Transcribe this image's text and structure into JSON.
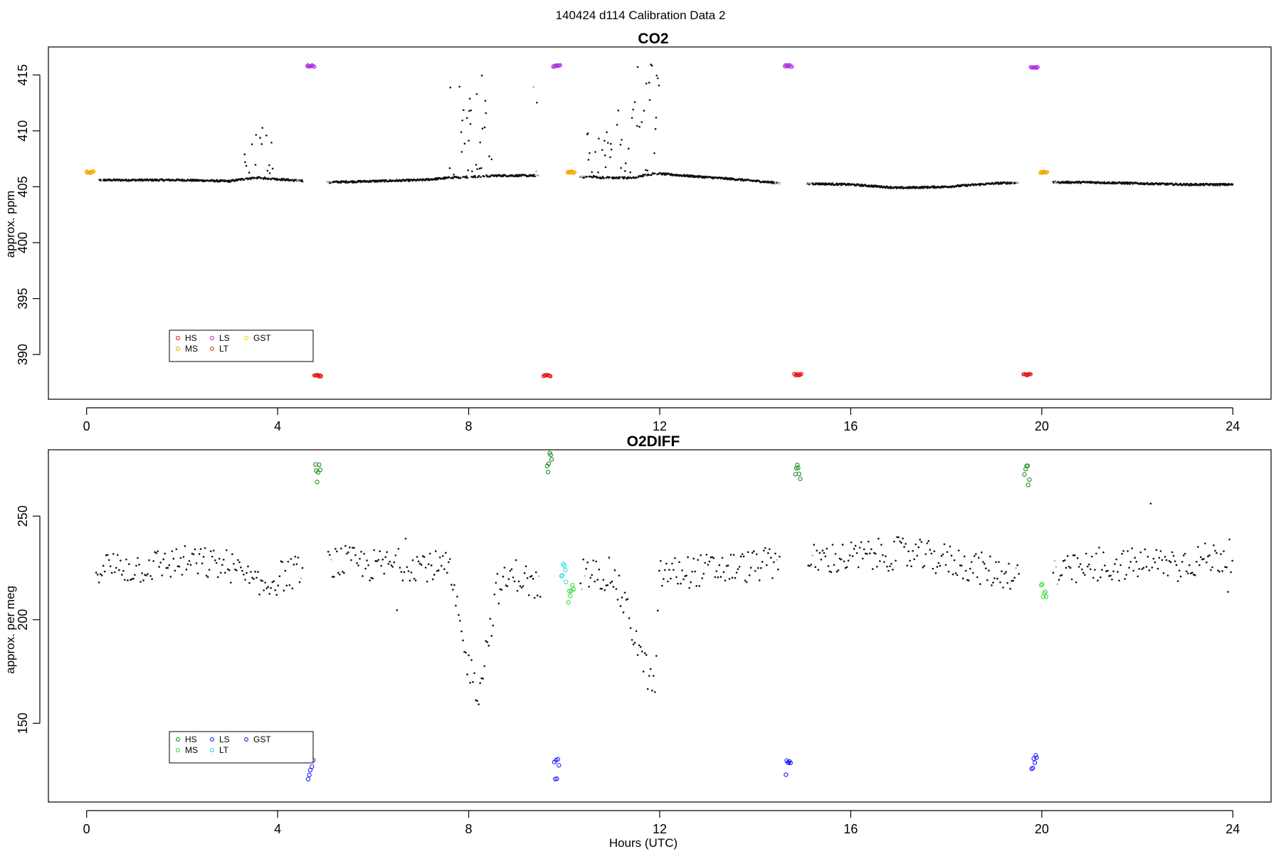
{
  "figure": {
    "title": "140424   d114   Calibration Data 2",
    "xlabel": "Hours (UTC)"
  },
  "chart_data": [
    {
      "type": "scatter",
      "title": "CO2",
      "xlabel": "",
      "ylabel": "approx. ppm",
      "xlim": [
        -0.8,
        24.8
      ],
      "ylim": [
        386,
        417.5
      ],
      "xticks": [
        0,
        4,
        8,
        12,
        16,
        20,
        24
      ],
      "yticks": [
        390,
        395,
        400,
        405,
        410,
        415
      ],
      "legend": {
        "position": "bottom-left",
        "entries": [
          {
            "label": "HS",
            "color": "#e41a1c"
          },
          {
            "label": "MS",
            "color": "#f5a800"
          },
          {
            "label": "LS",
            "color": "#b030e0"
          },
          {
            "label": "LT",
            "color": "#c0392b"
          },
          {
            "label": "GST",
            "color": "#f5d400"
          }
        ]
      },
      "baseline_colors": {
        "ambient": "#111111",
        "flush": "#b8b8b8"
      },
      "ambient_trend": {
        "hours": [
          0.2,
          1,
          2,
          3,
          3.3,
          3.6,
          4.6,
          5,
          6,
          7,
          7.6,
          8.6,
          9.4,
          10.3,
          11,
          11.4,
          11.9,
          12.5,
          13.5,
          14.6,
          15.0,
          16.0,
          17.0,
          18.0,
          19.0,
          19.7,
          20.3,
          21,
          22,
          23,
          24
        ],
        "ppm": [
          405.6,
          405.6,
          405.6,
          405.5,
          405.7,
          405.8,
          405.5,
          405.4,
          405.5,
          405.6,
          405.8,
          406.0,
          406.0,
          405.9,
          405.8,
          405.8,
          406.2,
          406.0,
          405.7,
          405.3,
          405.3,
          405.2,
          404.9,
          405.0,
          405.3,
          405.4,
          405.4,
          405.4,
          405.3,
          405.2,
          405.2
        ]
      },
      "excursions": [
        {
          "from": 3.3,
          "to": 3.9,
          "peak": 410.3
        },
        {
          "from": 7.6,
          "to": 8.5,
          "peak": 416.0
        },
        {
          "from": 9.2,
          "to": 9.6,
          "peak": 416.4
        },
        {
          "from": 10.4,
          "to": 11.0,
          "peak": 410.0
        },
        {
          "from": 11.0,
          "to": 12.0,
          "peak": 416.5
        }
      ],
      "calibration_groups": [
        {
          "gas": "LS",
          "hour": 4.7,
          "value": 415.8
        },
        {
          "gas": "HS",
          "hour": 4.85,
          "value": 388.1
        },
        {
          "gas": "HS",
          "hour": 9.65,
          "value": 388.1
        },
        {
          "gas": "LS",
          "hour": 9.85,
          "value": 415.8
        },
        {
          "gas": "MS",
          "hour": 10.15,
          "value": 406.3
        },
        {
          "gas": "LS",
          "hour": 14.7,
          "value": 415.8
        },
        {
          "gas": "HS",
          "hour": 14.9,
          "value": 388.2
        },
        {
          "gas": "HS",
          "hour": 19.7,
          "value": 388.2
        },
        {
          "gas": "LS",
          "hour": 19.85,
          "value": 415.7
        },
        {
          "gas": "MS",
          "hour": 20.05,
          "value": 406.3
        },
        {
          "gas": "MS",
          "hour": 0.08,
          "value": 406.3
        }
      ]
    },
    {
      "type": "scatter",
      "title": "O2DIFF",
      "xlabel": "Hours (UTC)",
      "ylabel": "approx. per meg",
      "xlim": [
        -0.8,
        24.8
      ],
      "ylim": [
        112,
        282
      ],
      "xticks": [
        0,
        4,
        8,
        12,
        16,
        20,
        24
      ],
      "yticks": [
        150,
        200,
        250
      ],
      "legend": {
        "position": "bottom-left",
        "entries": [
          {
            "label": "HS",
            "color": "#1a8a1a"
          },
          {
            "label": "MS",
            "color": "#33dd33"
          },
          {
            "label": "LS",
            "color": "#1c1cff"
          },
          {
            "label": "LT",
            "color": "#22dddd"
          },
          {
            "label": "GST",
            "color": "#1c1ccc"
          }
        ]
      },
      "baseline_colors": {
        "ambient": "#111111",
        "flush": "#b8b8b8"
      },
      "ambient_trend": {
        "hours": [
          0.2,
          1,
          2,
          3,
          3.6,
          4.5,
          5,
          6,
          7,
          7.6,
          7.9,
          8.2,
          8.6,
          9.0,
          9.5,
          10.0,
          10.5,
          11.0,
          11.3,
          11.6,
          11.9,
          12.0,
          13,
          14,
          14.6,
          15.0,
          16,
          17,
          18,
          19,
          19.6,
          20.3,
          21,
          22,
          23,
          24
        ],
        "value": [
          226,
          225,
          228,
          226,
          215,
          226,
          229,
          226,
          227,
          224,
          185,
          165,
          215,
          222,
          215,
          222,
          222,
          222,
          205,
          183,
          165,
          222,
          224,
          226,
          228,
          229,
          230,
          232,
          229,
          223,
          222,
          222,
          225,
          227,
          228,
          231
        ]
      },
      "calibration_groups": [
        {
          "gas": "LS",
          "hour": 4.7,
          "value": 128
        },
        {
          "gas": "HS",
          "hour": 4.85,
          "value": 270
        },
        {
          "gas": "HS",
          "hour": 9.7,
          "value": 276
        },
        {
          "gas": "LS",
          "hour": 9.85,
          "value": 128
        },
        {
          "gas": "LT",
          "hour": 10.0,
          "value": 222
        },
        {
          "gas": "MS",
          "hour": 10.15,
          "value": 213
        },
        {
          "gas": "LS",
          "hour": 14.7,
          "value": 130
        },
        {
          "gas": "HS",
          "hour": 14.9,
          "value": 272
        },
        {
          "gas": "HS",
          "hour": 19.7,
          "value": 270
        },
        {
          "gas": "LS",
          "hour": 19.85,
          "value": 130
        },
        {
          "gas": "MS",
          "hour": 20.05,
          "value": 216
        }
      ]
    }
  ]
}
